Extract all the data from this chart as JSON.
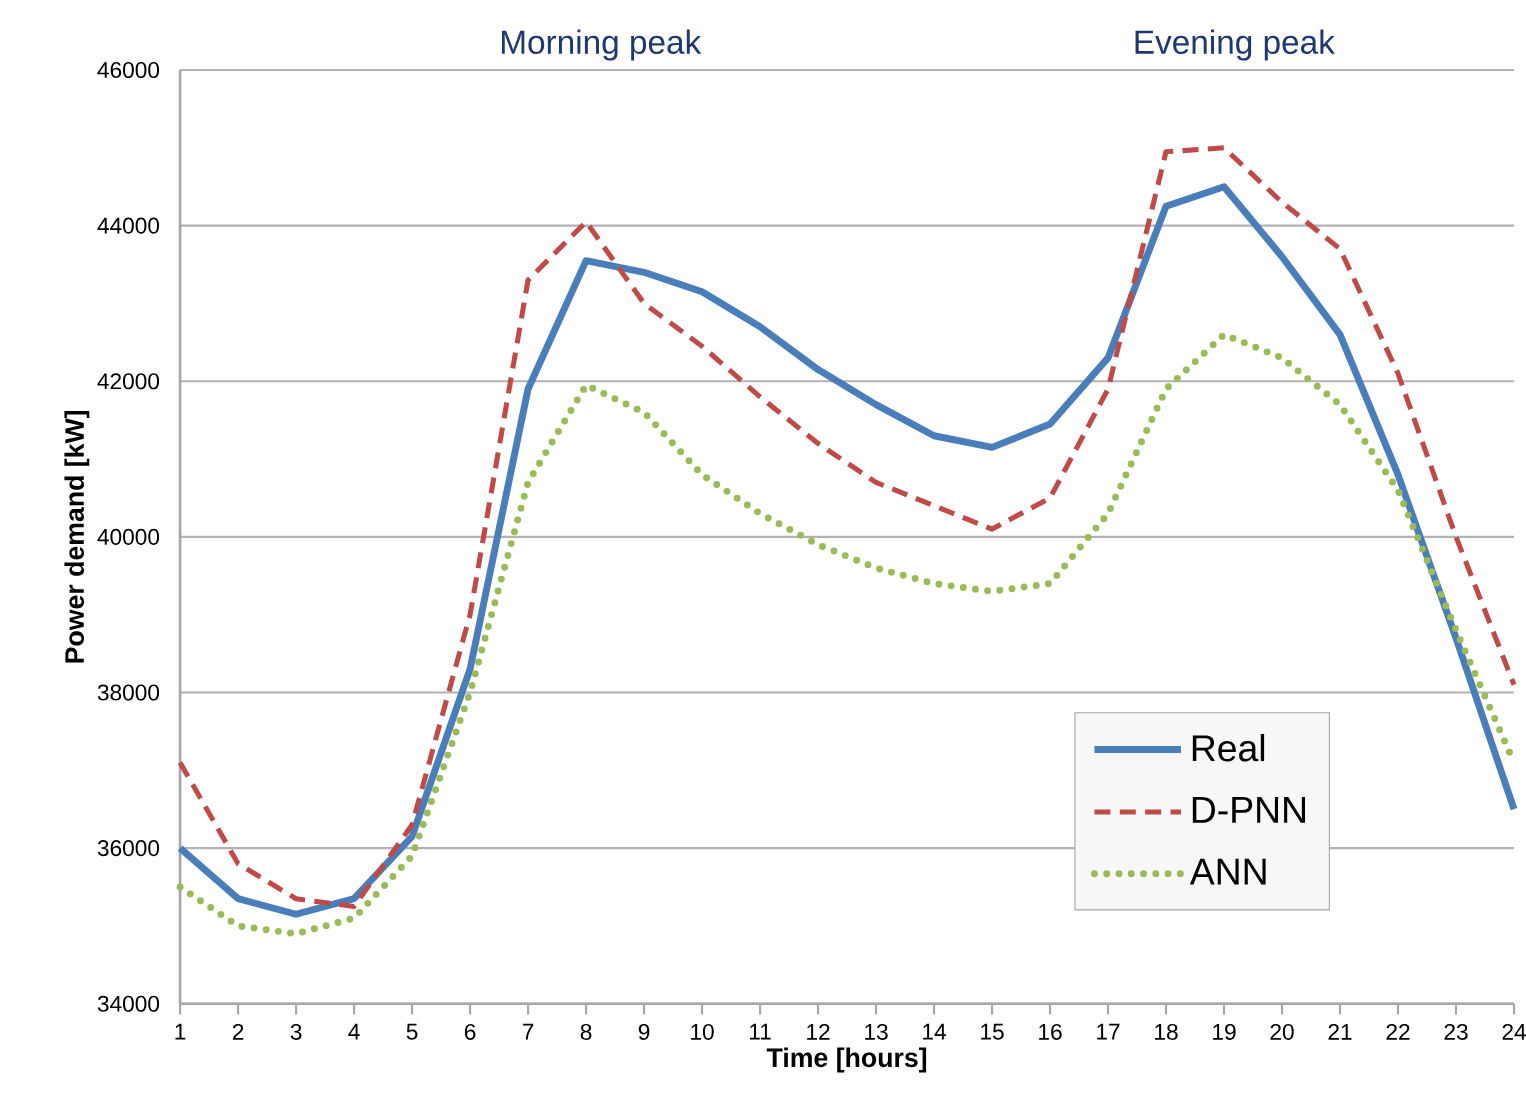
{
  "chart_data": {
    "type": "line",
    "xlabel": "Time [hours]",
    "ylabel": "Power demand [kW]",
    "x": [
      1,
      2,
      3,
      4,
      5,
      6,
      7,
      8,
      9,
      10,
      11,
      12,
      13,
      14,
      15,
      16,
      17,
      18,
      19,
      20,
      21,
      22,
      23,
      24
    ],
    "xlim": [
      1,
      24
    ],
    "xticks": [
      1,
      2,
      3,
      4,
      5,
      6,
      7,
      8,
      9,
      10,
      11,
      12,
      13,
      14,
      15,
      16,
      17,
      18,
      19,
      20,
      21,
      22,
      23,
      24
    ],
    "ylim": [
      34000,
      46000
    ],
    "yticks": [
      34000,
      36000,
      38000,
      40000,
      42000,
      44000,
      46000
    ],
    "grid": "y",
    "legend": "bottom right",
    "marker": "none",
    "annotations": [
      "Morning peak",
      "Evening peak"
    ],
    "series": [
      {
        "name": "Real",
        "color": "#4a7ebb",
        "line_style": "solid",
        "values": [
          36000,
          35350,
          35150,
          35350,
          36150,
          38300,
          41900,
          43550,
          43400,
          43150,
          42700,
          42150,
          41700,
          41300,
          41150,
          41450,
          42300,
          44250,
          44500,
          43600,
          42600,
          40800,
          38700,
          36500
        ]
      },
      {
        "name": "D-PNN",
        "color": "#be4b48",
        "line_style": "dashed",
        "values": [
          37100,
          35800,
          35350,
          35250,
          36300,
          39000,
          43300,
          44050,
          43000,
          42450,
          41800,
          41200,
          40700,
          40400,
          40100,
          40500,
          41900,
          44950,
          45000,
          44300,
          43700,
          42100,
          40000,
          38100
        ]
      },
      {
        "name": "ANN",
        "color": "#9bbb59",
        "line_style": "dotted",
        "values": [
          35500,
          35000,
          34900,
          35100,
          35900,
          38000,
          40700,
          41950,
          41600,
          40800,
          40300,
          39900,
          39600,
          39400,
          39300,
          39400,
          40300,
          41900,
          42600,
          42300,
          41700,
          40600,
          38800,
          37100
        ]
      }
    ]
  }
}
